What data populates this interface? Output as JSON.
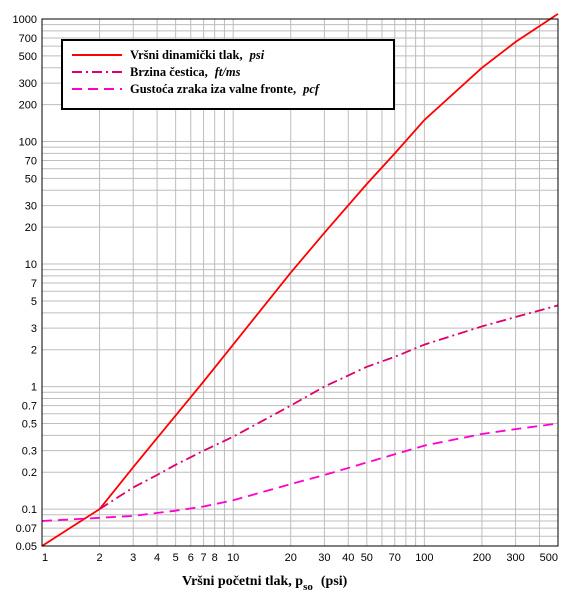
{
  "chart_data": {
    "type": "line",
    "xscale": "log",
    "yscale": "log",
    "xlim": [
      1,
      500
    ],
    "ylim": [
      0.05,
      1000
    ],
    "grid": true,
    "legend_position": "top-left",
    "xlabel": {
      "main": "Vršni početni tlak, p",
      "subscript": "so",
      "unit": "(psi)"
    },
    "x_ticks": [
      "1",
      "2",
      "3",
      "4",
      "5",
      "6",
      "7",
      "8",
      "10",
      "20",
      "30",
      "40",
      "50",
      "70",
      "100",
      "200",
      "300",
      "500"
    ],
    "y_ticks": [
      "1000",
      "700",
      "500",
      "300",
      "200",
      "100",
      "70",
      "50",
      "30",
      "20",
      "10",
      "7",
      "5",
      "3",
      "2",
      "1",
      "0.7",
      "0.5",
      "0.3",
      "0.2",
      "0.1",
      "0.07",
      "0.05"
    ],
    "series": [
      {
        "name": "Vršni dinamički tlak,",
        "unit": "psi",
        "color": "#ff0000",
        "dash": "solid",
        "x": [
          1,
          1.5,
          2,
          3,
          4,
          5,
          7,
          10,
          20,
          30,
          50,
          70,
          100,
          200,
          300,
          500
        ],
        "y": [
          0.05,
          0.075,
          0.1,
          0.22,
          0.38,
          0.58,
          1.1,
          2.2,
          8.5,
          18,
          45,
          80,
          150,
          400,
          650,
          1100
        ]
      },
      {
        "name": "Brzina čestica,",
        "unit": "ft/ms",
        "color": "#e0006a",
        "dash": "dashdot",
        "x": [
          2,
          3,
          4,
          5,
          7,
          10,
          20,
          30,
          50,
          70,
          100,
          200,
          300,
          500
        ],
        "y": [
          0.1,
          0.15,
          0.19,
          0.23,
          0.3,
          0.39,
          0.7,
          1.0,
          1.45,
          1.75,
          2.2,
          3.1,
          3.7,
          4.6
        ]
      },
      {
        "name": "Gustoća zraka iza valne fronte,",
        "unit": "pcf",
        "color": "#ff00cc",
        "dash": "dash",
        "x": [
          1,
          2,
          3,
          5,
          7,
          10,
          20,
          30,
          50,
          70,
          100,
          200,
          300,
          500
        ],
        "y": [
          0.08,
          0.085,
          0.088,
          0.097,
          0.105,
          0.118,
          0.16,
          0.19,
          0.24,
          0.28,
          0.33,
          0.41,
          0.45,
          0.5
        ]
      }
    ]
  }
}
